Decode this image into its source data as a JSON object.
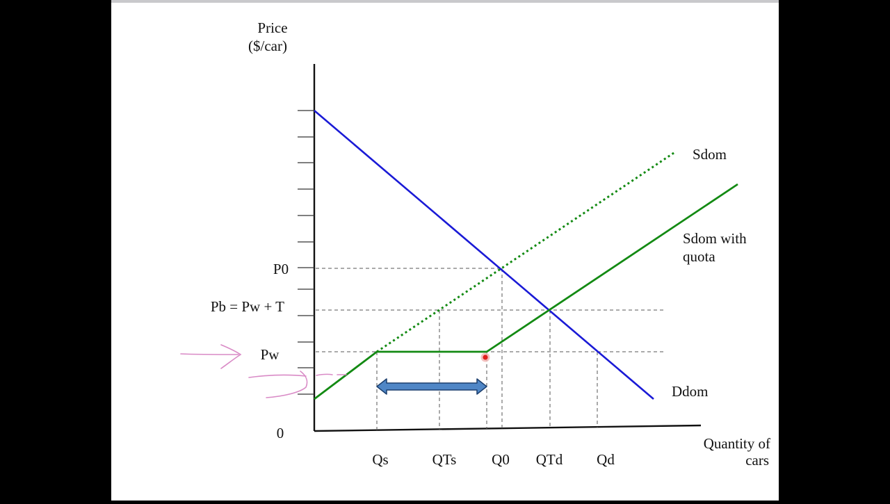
{
  "diagram": {
    "y_axis_label_line1": "Price",
    "y_axis_label_line2": "($/car)",
    "x_axis_label_line1": "Quantity of",
    "x_axis_label_line2": "cars",
    "origin": "0",
    "price_labels": {
      "p0": "P0",
      "pb": "Pb = Pw + T",
      "pw": "Pw"
    },
    "quantity_labels": [
      "Qs",
      "QTs",
      "Q0",
      "QTd",
      "Qd"
    ],
    "curve_labels": {
      "sdom": "Sdom",
      "sdom_quota_line1": "Sdom with",
      "sdom_quota_line2": "quota",
      "ddom": "Ddom"
    }
  },
  "colors": {
    "demand": "#1a1ad6",
    "supply": "#138a13",
    "arrow_fill": "#4f86c6",
    "cursor": "#e0201c",
    "annotation_ink": "#d98ac6"
  }
}
